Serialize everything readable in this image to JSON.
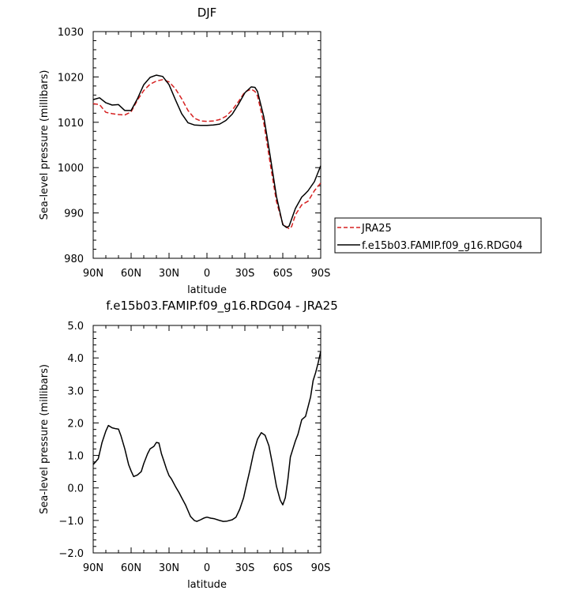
{
  "chart_data": [
    {
      "type": "line",
      "title": "DJF",
      "xlabel": "latitude",
      "ylabel": "Sea-level pressure (millibars)",
      "xlim": [
        90,
        -90
      ],
      "ylim": [
        980,
        1030
      ],
      "x_ticks": [
        90,
        60,
        30,
        0,
        -30,
        -60,
        -90
      ],
      "x_tick_labels": [
        "90N",
        "60N",
        "30N",
        "0",
        "30S",
        "60S",
        "90S"
      ],
      "y_ticks": [
        980,
        990,
        1000,
        1010,
        1020,
        1030
      ],
      "y_tick_labels": [
        "980",
        "990",
        "1000",
        "1010",
        "1020",
        "1030"
      ],
      "legend_position": "right",
      "series": [
        {
          "name": "JRA25",
          "color": "#d62020",
          "dash": "dashed",
          "x": [
            90,
            85,
            80,
            75,
            70,
            65,
            60,
            55,
            50,
            45,
            40,
            35,
            30,
            25,
            20,
            15,
            10,
            5,
            0,
            -5,
            -10,
            -15,
            -20,
            -25,
            -30,
            -35,
            -38,
            -40,
            -45,
            -50,
            -55,
            -60,
            -65,
            -67,
            -70,
            -75,
            -80,
            -85,
            -90
          ],
          "y": [
            1014.1,
            1013.9,
            1012.2,
            1011.9,
            1011.7,
            1011.6,
            1012.3,
            1014.9,
            1017.0,
            1018.4,
            1019.1,
            1019.4,
            1018.9,
            1017.4,
            1015.2,
            1012.6,
            1010.9,
            1010.3,
            1010.2,
            1010.3,
            1010.6,
            1011.3,
            1012.7,
            1014.6,
            1016.7,
            1017.3,
            1016.8,
            1015.8,
            1009.8,
            1001.0,
            992.5,
            987.6,
            986.5,
            987.0,
            989.6,
            991.8,
            992.6,
            994.9,
            996.6
          ]
        },
        {
          "name": "f.e15b03.FAMIP.f09_g16.RDG04",
          "color": "#000000",
          "dash": "solid",
          "x": [
            90,
            85,
            80,
            75,
            70,
            65,
            60,
            55,
            50,
            45,
            40,
            35,
            30,
            25,
            20,
            15,
            10,
            5,
            0,
            -5,
            -10,
            -15,
            -20,
            -25,
            -30,
            -35,
            -38,
            -40,
            -45,
            -50,
            -55,
            -60,
            -63,
            -65,
            -70,
            -75,
            -78,
            -80,
            -85,
            -88,
            -90
          ],
          "y": [
            1015.0,
            1015.4,
            1014.3,
            1013.8,
            1013.9,
            1012.6,
            1012.6,
            1015.2,
            1018.3,
            1019.9,
            1020.4,
            1020.1,
            1018.3,
            1015.0,
            1011.9,
            1009.9,
            1009.4,
            1009.3,
            1009.3,
            1009.4,
            1009.6,
            1010.4,
            1011.8,
            1014.0,
            1016.5,
            1017.8,
            1017.7,
            1016.8,
            1011.2,
            1002.6,
            993.6,
            987.4,
            986.8,
            987.1,
            991.0,
            993.5,
            994.3,
            994.9,
            996.9,
            999.0,
            1000.4
          ]
        }
      ]
    },
    {
      "type": "line",
      "title": "f.e15b03.FAMIP.f09_g16.RDG04 - JRA25",
      "xlabel": "latitude",
      "ylabel": "Sea-level pressure (millibars)",
      "xlim": [
        90,
        -90
      ],
      "ylim": [
        -2.0,
        5.0
      ],
      "x_ticks": [
        90,
        60,
        30,
        0,
        -30,
        -60,
        -90
      ],
      "x_tick_labels": [
        "90N",
        "60N",
        "30N",
        "0",
        "30S",
        "60S",
        "90S"
      ],
      "y_ticks": [
        -2.0,
        -1.0,
        0.0,
        1.0,
        2.0,
        3.0,
        4.0,
        5.0
      ],
      "y_tick_labels": [
        "−2.0",
        "−1.0",
        "0.0",
        "1.0",
        "2.0",
        "3.0",
        "4.0",
        "5.0"
      ],
      "series": [
        {
          "color": "#000000",
          "dash": "solid",
          "x": [
            90,
            86,
            83,
            80,
            78,
            75,
            72,
            70,
            68,
            65,
            62,
            60,
            58,
            55,
            52,
            50,
            47,
            45,
            42,
            40,
            38,
            36,
            34,
            32,
            30,
            28,
            25,
            22,
            20,
            17,
            15,
            13,
            10,
            8,
            5,
            2,
            0,
            -3,
            -6,
            -10,
            -13,
            -16,
            -20,
            -23,
            -26,
            -29,
            -31,
            -34,
            -37,
            -40,
            -43,
            -46,
            -49,
            -52,
            -55,
            -58,
            -60,
            -62,
            -64,
            -66,
            -68,
            -70,
            -72,
            -75,
            -78,
            -80,
            -82,
            -84,
            -86,
            -88,
            -90
          ],
          "y": [
            0.72,
            0.9,
            1.4,
            1.75,
            1.92,
            1.85,
            1.82,
            1.81,
            1.6,
            1.2,
            0.72,
            0.52,
            0.35,
            0.4,
            0.5,
            0.75,
            1.05,
            1.2,
            1.28,
            1.4,
            1.38,
            1.05,
            0.82,
            0.58,
            0.38,
            0.27,
            0.05,
            -0.15,
            -0.3,
            -0.52,
            -0.7,
            -0.88,
            -1.0,
            -1.03,
            -0.98,
            -0.92,
            -0.9,
            -0.93,
            -0.95,
            -1.0,
            -1.03,
            -1.02,
            -0.98,
            -0.9,
            -0.65,
            -0.3,
            0.05,
            0.55,
            1.1,
            1.5,
            1.7,
            1.62,
            1.3,
            0.7,
            0.05,
            -0.38,
            -0.52,
            -0.3,
            0.25,
            0.95,
            1.2,
            1.45,
            1.65,
            2.1,
            2.2,
            2.5,
            2.8,
            3.3,
            3.55,
            3.85,
            4.2
          ]
        }
      ]
    }
  ]
}
